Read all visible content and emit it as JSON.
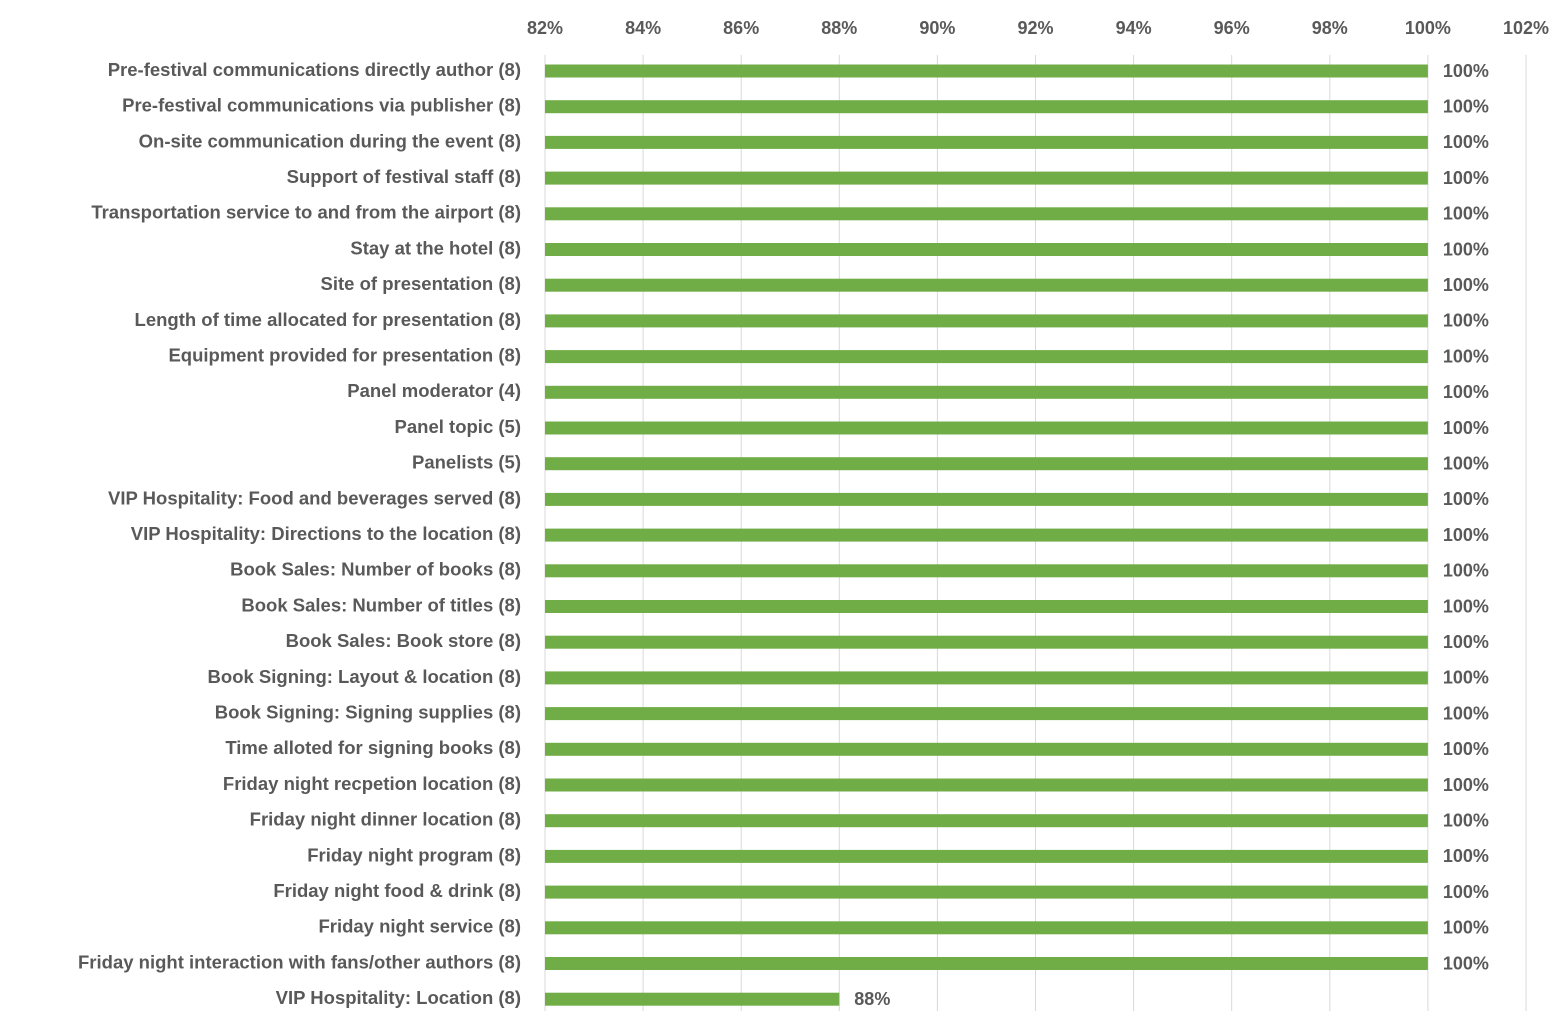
{
  "chart_data": {
    "type": "bar",
    "orientation": "horizontal",
    "xlim": [
      82,
      102
    ],
    "x_ticks": [
      "82%",
      "84%",
      "86%",
      "88%",
      "90%",
      "92%",
      "94%",
      "96%",
      "98%",
      "100%",
      "102%"
    ],
    "x_tick_values": [
      82,
      84,
      86,
      88,
      90,
      92,
      94,
      96,
      98,
      100,
      102
    ],
    "axis_position": "top",
    "grid": "vertical",
    "categories": [
      "Pre-festival communications directly author (8)",
      "Pre-festival communications via publisher (8)",
      "On-site communication during the event (8)",
      "Support of festival staff (8)",
      "Transportation service to and from the airport (8)",
      "Stay at the hotel (8)",
      "Site of presentation (8)",
      "Length of time allocated for presentation (8)",
      "Equipment provided for presentation (8)",
      "Panel moderator (4)",
      "Panel topic (5)",
      "Panelists (5)",
      "VIP Hospitality: Food and beverages served (8)",
      "VIP Hospitality: Directions to the location (8)",
      "Book Sales: Number of books (8)",
      "Book Sales: Number of titles (8)",
      "Book Sales: Book store (8)",
      "Book Signing: Layout & location (8)",
      "Book Signing: Signing supplies (8)",
      "Time alloted for signing books (8)",
      "Friday night recpetion location (8)",
      "Friday night dinner location (8)",
      "Friday night program (8)",
      "Friday night food & drink (8)",
      "Friday night service (8)",
      "Friday night interaction with fans/other authors (8)",
      "VIP Hospitality: Location (8)"
    ],
    "values": [
      100,
      100,
      100,
      100,
      100,
      100,
      100,
      100,
      100,
      100,
      100,
      100,
      100,
      100,
      100,
      100,
      100,
      100,
      100,
      100,
      100,
      100,
      100,
      100,
      100,
      100,
      88
    ],
    "data_labels": [
      "100%",
      "100%",
      "100%",
      "100%",
      "100%",
      "100%",
      "100%",
      "100%",
      "100%",
      "100%",
      "100%",
      "100%",
      "100%",
      "100%",
      "100%",
      "100%",
      "100%",
      "100%",
      "100%",
      "100%",
      "100%",
      "100%",
      "100%",
      "100%",
      "100%",
      "100%",
      "88%"
    ],
    "colors": {
      "bar": "#70ad47",
      "grid": "#d9d9d9",
      "text": "#595959"
    }
  }
}
